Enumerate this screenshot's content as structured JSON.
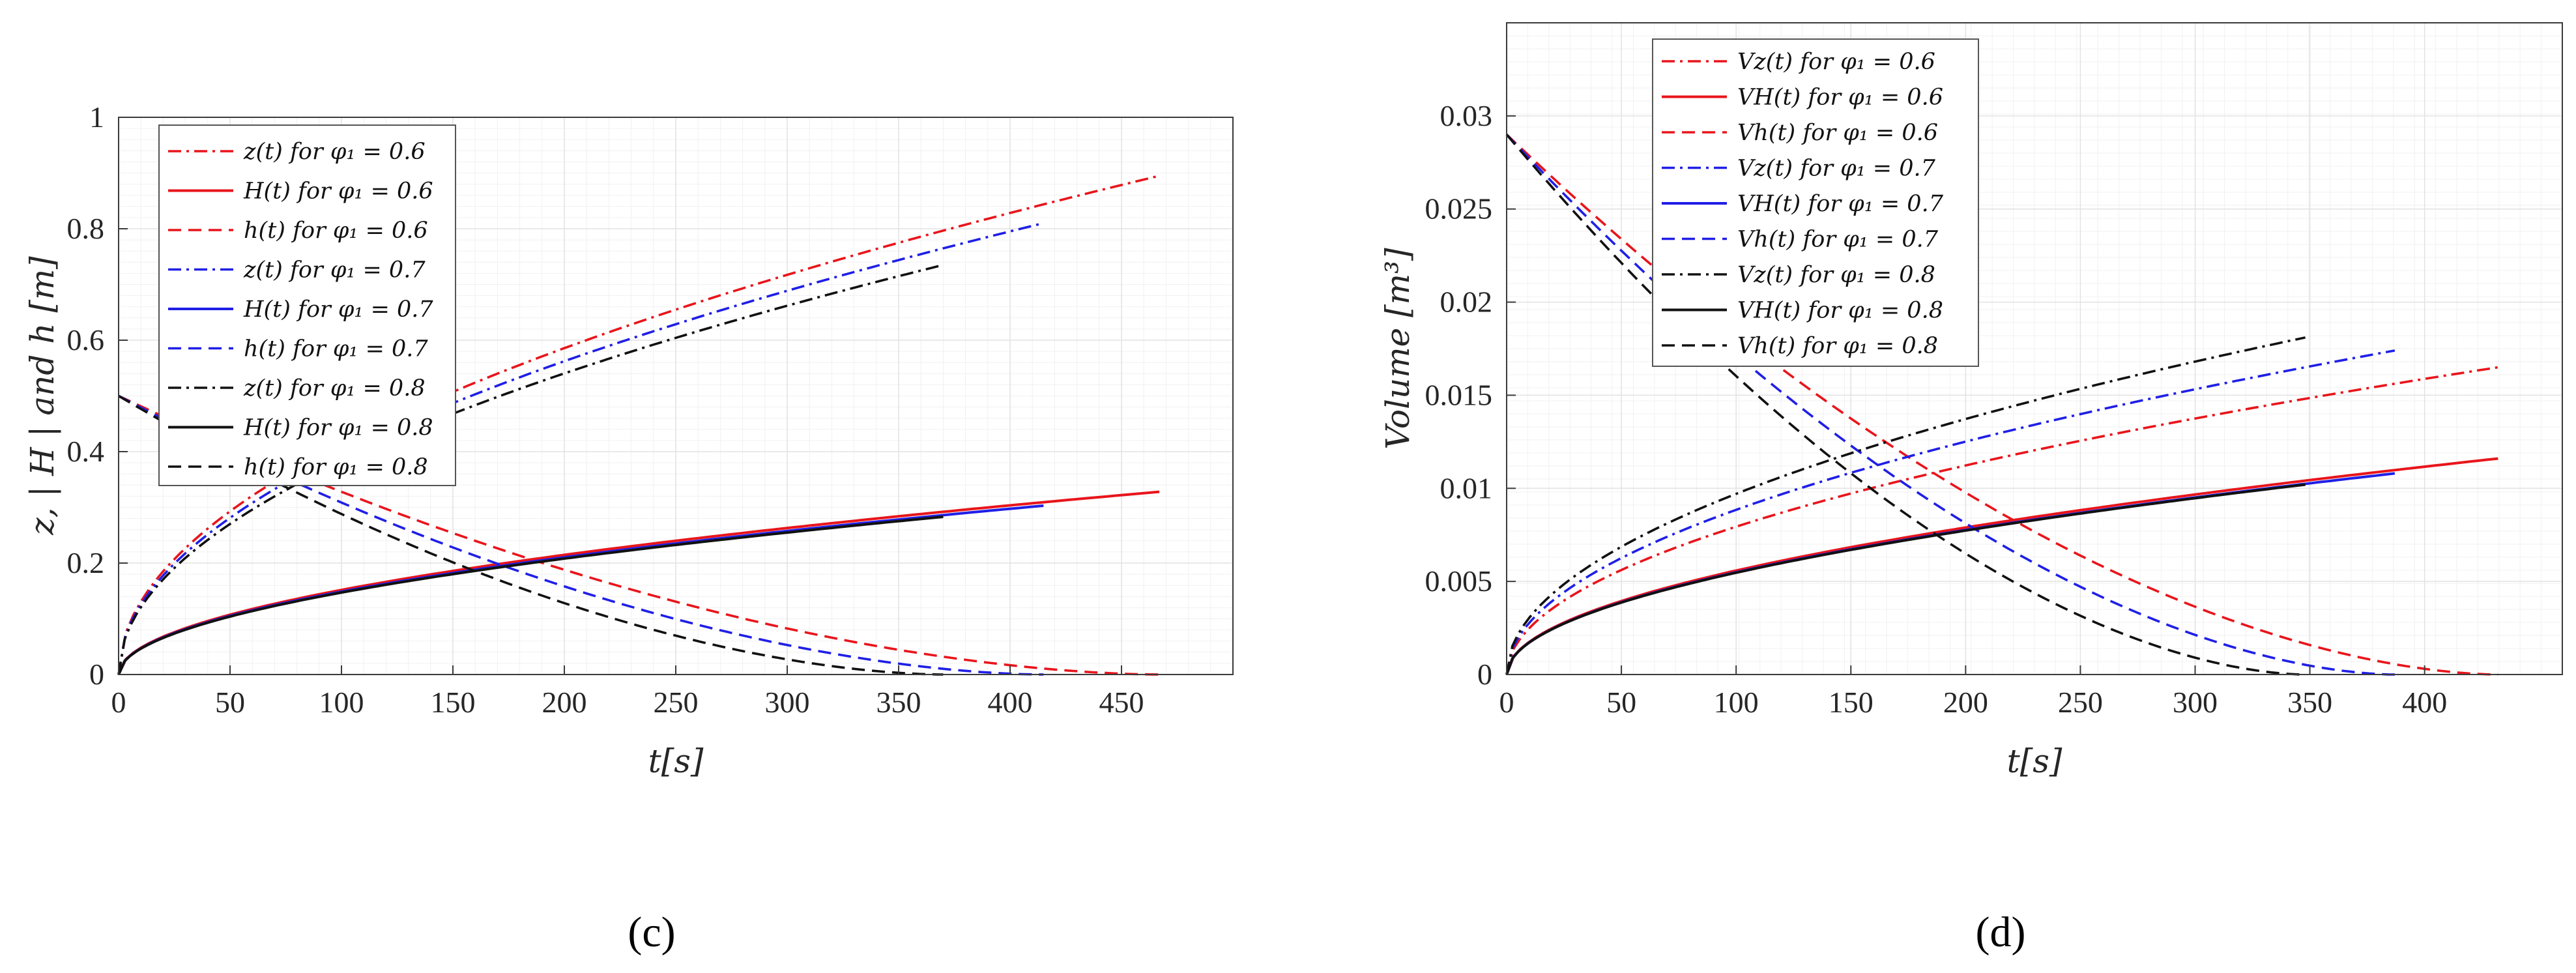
{
  "chart_data": [
    {
      "type": "line",
      "panel_label": "(c)",
      "xlabel": "t[s]",
      "ylabel": "z, | H |  and h [m]",
      "xlim": [
        0,
        500
      ],
      "ylim": [
        0,
        1
      ],
      "xticks": [
        "0",
        "50",
        "100",
        "150",
        "200",
        "250",
        "300",
        "350",
        "400",
        "450"
      ],
      "yticks": [
        "0",
        "0.2",
        "0.4",
        "0.6",
        "0.8",
        "1"
      ],
      "grid": true,
      "legend_position": "top-left",
      "series": [
        {
          "name": "z(t) for φ₁ = 0.6",
          "color": "#e8151b",
          "dash": "dashdot",
          "kind": "rise",
          "t_end": 467,
          "y_end": 0.895
        },
        {
          "name": "H(t) for φ₁ = 0.6",
          "color": "#e8151b",
          "dash": "solid",
          "kind": "rise",
          "t_end": 467,
          "y_end": 0.328
        },
        {
          "name": "h(t) for φ₁ = 0.6",
          "color": "#e8151b",
          "dash": "dashed",
          "kind": "fall",
          "t_end": 467,
          "y_start": 0.5
        },
        {
          "name": "z(t) for φ₁ = 0.7",
          "color": "#1f1fe6",
          "dash": "dashdot",
          "kind": "rise",
          "t_end": 415,
          "y_end": 0.81
        },
        {
          "name": "H(t) for φ₁ = 0.7",
          "color": "#1f1fe6",
          "dash": "solid",
          "kind": "rise",
          "t_end": 415,
          "y_end": 0.303
        },
        {
          "name": "h(t) for φ₁ = 0.7",
          "color": "#1f1fe6",
          "dash": "dashed",
          "kind": "fall",
          "t_end": 415,
          "y_start": 0.5
        },
        {
          "name": "z(t) for φ₁ = 0.8",
          "color": "#111111",
          "dash": "dashdot",
          "kind": "rise",
          "t_end": 370,
          "y_end": 0.735
        },
        {
          "name": "H(t) for φ₁ = 0.8",
          "color": "#111111",
          "dash": "solid",
          "kind": "rise",
          "t_end": 370,
          "y_end": 0.283
        },
        {
          "name": "h(t) for φ₁ = 0.8",
          "color": "#111111",
          "dash": "dashed",
          "kind": "fall",
          "t_end": 370,
          "y_start": 0.5
        }
      ]
    },
    {
      "type": "line",
      "panel_label": "(d)",
      "xlabel": "t[s]",
      "ylabel": "Volume [m³]",
      "xlim": [
        0,
        460
      ],
      "ylim": [
        0,
        0.035
      ],
      "xticks": [
        "0",
        "50",
        "100",
        "150",
        "200",
        "250",
        "300",
        "350",
        "400"
      ],
      "yticks": [
        "0",
        "0.005",
        "0.01",
        "0.015",
        "0.02",
        "0.025",
        "0.03"
      ],
      "grid": true,
      "legend_position": "top-left",
      "series": [
        {
          "name": "Vz(t) for φ₁ = 0.6",
          "color": "#e8151b",
          "dash": "dashdot",
          "kind": "rise",
          "t_end": 432,
          "y_end": 0.0165
        },
        {
          "name": "VH(t) for φ₁ = 0.6",
          "color": "#e8151b",
          "dash": "solid",
          "kind": "rise",
          "t_end": 432,
          "y_end": 0.0116
        },
        {
          "name": "Vh(t) for φ₁ = 0.6",
          "color": "#e8151b",
          "dash": "dashed",
          "kind": "fall",
          "t_end": 432,
          "y_start": 0.029
        },
        {
          "name": "Vz(t) for φ₁ = 0.7",
          "color": "#1f1fe6",
          "dash": "dashdot",
          "kind": "rise",
          "t_end": 387,
          "y_end": 0.0174
        },
        {
          "name": "VH(t) for φ₁ = 0.7",
          "color": "#1f1fe6",
          "dash": "solid",
          "kind": "rise",
          "t_end": 387,
          "y_end": 0.0108
        },
        {
          "name": "Vh(t) for φ₁ = 0.7",
          "color": "#1f1fe6",
          "dash": "dashed",
          "kind": "fall",
          "t_end": 387,
          "y_start": 0.029
        },
        {
          "name": "Vz(t) for φ₁ = 0.8",
          "color": "#111111",
          "dash": "dashdot",
          "kind": "rise",
          "t_end": 348,
          "y_end": 0.0181
        },
        {
          "name": "VH(t) for φ₁ = 0.8",
          "color": "#111111",
          "dash": "solid",
          "kind": "rise",
          "t_end": 348,
          "y_end": 0.0102
        },
        {
          "name": "Vh(t) for φ₁ = 0.8",
          "color": "#111111",
          "dash": "dashed",
          "kind": "fall",
          "t_end": 348,
          "y_start": 0.029
        }
      ]
    }
  ]
}
